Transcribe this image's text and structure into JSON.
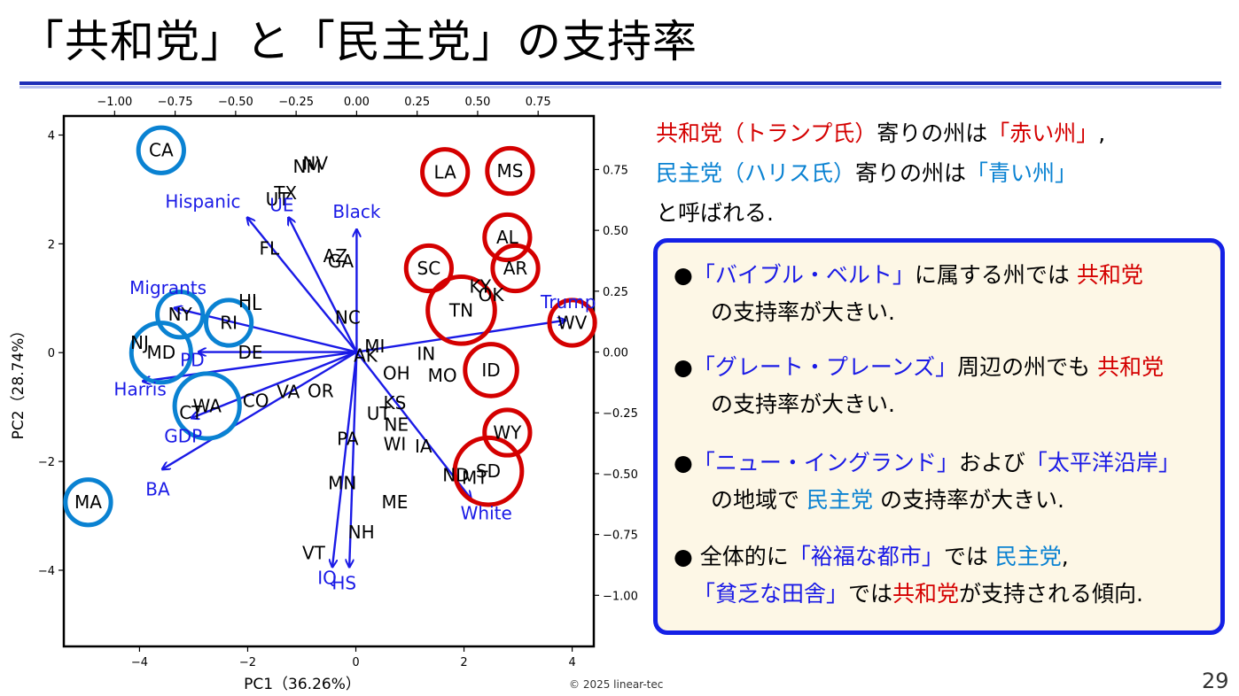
{
  "slide": {
    "title": "「共和党」と「民主党」の支持率",
    "page_number": "29",
    "copyright": "© 2025 linear-tec"
  },
  "intro": {
    "l1": {
      "a": "共和党（トランプ氏）",
      "b": "寄りの州は",
      "c": "「赤い州」",
      "d": ","
    },
    "l2": {
      "a": "民主党（ハリス氏）",
      "b": "寄りの州は",
      "c": "「青い州」"
    },
    "l3": "と呼ばれる."
  },
  "box": {
    "b1": {
      "mark": "●",
      "a": "「バイブル・ベルト」",
      "b": "に属する州では",
      "c": "共和党",
      "d": "の支持率が大きい."
    },
    "b2": {
      "mark": "●",
      "a": "「グレート・プレーンズ」",
      "b": "周辺の州でも",
      "c": "共和党",
      "d": "の支持率が大きい."
    },
    "b3": {
      "mark": "●",
      "a": "「ニュー・イングランド」",
      "b": "および",
      "c": "「太平洋沿岸」",
      "d": "の地域で",
      "e": "民主党",
      "f": "の支持率が大きい."
    },
    "b4": {
      "mark": "●",
      "a": "全体的に",
      "b": "「裕福な都市」",
      "c": "では",
      "d": "民主党",
      "e": ",",
      "f": "「貧乏な田舎」",
      "g": "では",
      "h": "共和党",
      "i": "が支持される傾向."
    }
  },
  "colors": {
    "republican_red": "#d40000",
    "democrat_blue": "#0a82d2",
    "arrow_blue": "#1a1ae6",
    "box_border": "#1420e6",
    "box_fill": "#fdf7e6"
  },
  "chart_data": {
    "type": "scatter",
    "subtype": "PCA biplot",
    "xlabel": "PC1（36.26%）",
    "ylabel": "PC2（28.74%）",
    "xlim": [
      -5.4,
      4.4
    ],
    "ylim": [
      -5.4,
      4.35
    ],
    "xticks": [
      -4,
      -2,
      0,
      2,
      4
    ],
    "yticks": [
      -4,
      -2,
      0,
      2,
      4
    ],
    "x2lim": [
      -1.21,
      0.98
    ],
    "y2lim": [
      -1.21,
      0.97
    ],
    "x2ticks": [
      -1.0,
      -0.75,
      -0.5,
      -0.25,
      0.0,
      0.25,
      0.5,
      0.75
    ],
    "y2ticks": [
      -1.0,
      -0.75,
      -0.5,
      -0.25,
      0.0,
      0.25,
      0.5,
      0.75
    ],
    "tick_labels": {
      "x": [
        "−4",
        "−2",
        "0",
        "2",
        "4"
      ],
      "y": [
        "−4",
        "−2",
        "0",
        "2",
        "4"
      ],
      "x2": [
        "−1.00",
        "−0.75",
        "−0.50",
        "−0.25",
        "0.00",
        "0.25",
        "0.50",
        "0.75"
      ],
      "y2": [
        "−1.00",
        "−0.75",
        "−0.50",
        "−0.25",
        "0.00",
        "0.25",
        "0.50",
        "0.75"
      ]
    },
    "states": [
      {
        "label": "CA",
        "x": -3.6,
        "y": 3.72,
        "circle": "blue",
        "r": 0.42
      },
      {
        "label": "NM",
        "x": -0.9,
        "y": 3.42
      },
      {
        "label": "NV",
        "x": -0.75,
        "y": 3.48
      },
      {
        "label": "TX",
        "x": -1.3,
        "y": 2.93
      },
      {
        "label": "UT",
        "x": -1.45,
        "y": 2.82
      },
      {
        "label": "FL",
        "x": -1.6,
        "y": 1.92
      },
      {
        "label": "AZ",
        "x": -0.38,
        "y": 1.78
      },
      {
        "label": "GA",
        "x": -0.28,
        "y": 1.68
      },
      {
        "label": "HI",
        "x": -2.0,
        "y": 0.95
      },
      {
        "label": "IL",
        "x": -1.88,
        "y": 0.9
      },
      {
        "label": "NY",
        "x": -3.25,
        "y": 0.7,
        "circle": "blue",
        "r": 0.42
      },
      {
        "label": "RI",
        "x": -2.35,
        "y": 0.55,
        "circle": "blue",
        "r": 0.42
      },
      {
        "label": "NC",
        "x": -0.15,
        "y": 0.65
      },
      {
        "label": "NJ",
        "x": -4.0,
        "y": 0.18
      },
      {
        "label": "MD",
        "x": -3.6,
        "y": 0.0,
        "circle": "blue",
        "r": 0.55
      },
      {
        "label": "DE",
        "x": -1.95,
        "y": 0.0
      },
      {
        "label": "MI",
        "x": 0.35,
        "y": 0.12
      },
      {
        "label": "AK",
        "x": 0.18,
        "y": -0.05
      },
      {
        "label": "IN",
        "x": 1.3,
        "y": -0.02
      },
      {
        "label": "OH",
        "x": 0.75,
        "y": -0.38
      },
      {
        "label": "MO",
        "x": 1.6,
        "y": -0.42
      },
      {
        "label": "ID",
        "x": 2.5,
        "y": -0.32,
        "circle": "red",
        "r": 0.48
      },
      {
        "label": "VA",
        "x": -1.25,
        "y": -0.72
      },
      {
        "label": "OR",
        "x": -0.65,
        "y": -0.7
      },
      {
        "label": "CO",
        "x": -1.85,
        "y": -0.88
      },
      {
        "label": "CT",
        "x": -3.05,
        "y": -1.1
      },
      {
        "label": "WA",
        "x": -2.75,
        "y": -0.98,
        "circle": "blue",
        "r": 0.6
      },
      {
        "label": "KS",
        "x": 0.72,
        "y": -0.92
      },
      {
        "label": "UT",
        "x": 0.42,
        "y": -1.12
      },
      {
        "label": "NE",
        "x": 0.75,
        "y": -1.32
      },
      {
        "label": "WI",
        "x": 0.72,
        "y": -1.68
      },
      {
        "label": "IA",
        "x": 1.25,
        "y": -1.72
      },
      {
        "label": "PA",
        "x": -0.15,
        "y": -1.58
      },
      {
        "label": "WY",
        "x": 2.8,
        "y": -1.47,
        "circle": "red",
        "r": 0.42
      },
      {
        "label": "ND",
        "x": 1.85,
        "y": -2.25
      },
      {
        "label": "MT",
        "x": 2.2,
        "y": -2.3
      },
      {
        "label": "SD",
        "x": 2.45,
        "y": -2.18,
        "circle": "red",
        "r": 0.62
      },
      {
        "label": "MN",
        "x": -0.25,
        "y": -2.4
      },
      {
        "label": "ME",
        "x": 0.72,
        "y": -2.75
      },
      {
        "label": "NH",
        "x": 0.1,
        "y": -3.3
      },
      {
        "label": "VT",
        "x": -0.78,
        "y": -3.68
      },
      {
        "label": "MA",
        "x": -4.95,
        "y": -2.75,
        "circle": "blue",
        "r": 0.42
      },
      {
        "label": "LA",
        "x": 1.65,
        "y": 3.32,
        "circle": "red",
        "r": 0.42
      },
      {
        "label": "MS",
        "x": 2.85,
        "y": 3.34,
        "circle": "red",
        "r": 0.42
      },
      {
        "label": "AL",
        "x": 2.8,
        "y": 2.12,
        "circle": "red",
        "r": 0.42
      },
      {
        "label": "AR",
        "x": 2.95,
        "y": 1.55,
        "circle": "red",
        "r": 0.42
      },
      {
        "label": "SC",
        "x": 1.35,
        "y": 1.55,
        "circle": "red",
        "r": 0.42
      },
      {
        "label": "KY",
        "x": 2.3,
        "y": 1.22
      },
      {
        "label": "OK",
        "x": 2.5,
        "y": 1.06
      },
      {
        "label": "TN",
        "x": 1.95,
        "y": 0.78,
        "circle": "red",
        "r": 0.62
      },
      {
        "label": "WV",
        "x": 4.0,
        "y": 0.55,
        "circle": "red",
        "r": 0.42
      }
    ],
    "loadings": [
      {
        "name": "Hispanic",
        "x": -0.45,
        "y": 0.55
      },
      {
        "name": "UE",
        "x": -0.28,
        "y": 0.55
      },
      {
        "name": "Black",
        "x": 0.0,
        "y": 0.5
      },
      {
        "name": "Migrants",
        "x": -0.75,
        "y": 0.18
      },
      {
        "name": "Trump",
        "x": 0.86,
        "y": 0.13
      },
      {
        "name": "PD",
        "x": -0.65,
        "y": 0.0
      },
      {
        "name": "Harris",
        "x": -0.88,
        "y": -0.12
      },
      {
        "name": "GDP",
        "x": -0.68,
        "y": -0.27
      },
      {
        "name": "BA",
        "x": -0.8,
        "y": -0.48
      },
      {
        "name": "White",
        "x": 0.47,
        "y": -0.6
      },
      {
        "name": "IQ",
        "x": -0.1,
        "y": -0.88
      },
      {
        "name": "HS",
        "x": -0.03,
        "y": -0.88
      }
    ]
  }
}
